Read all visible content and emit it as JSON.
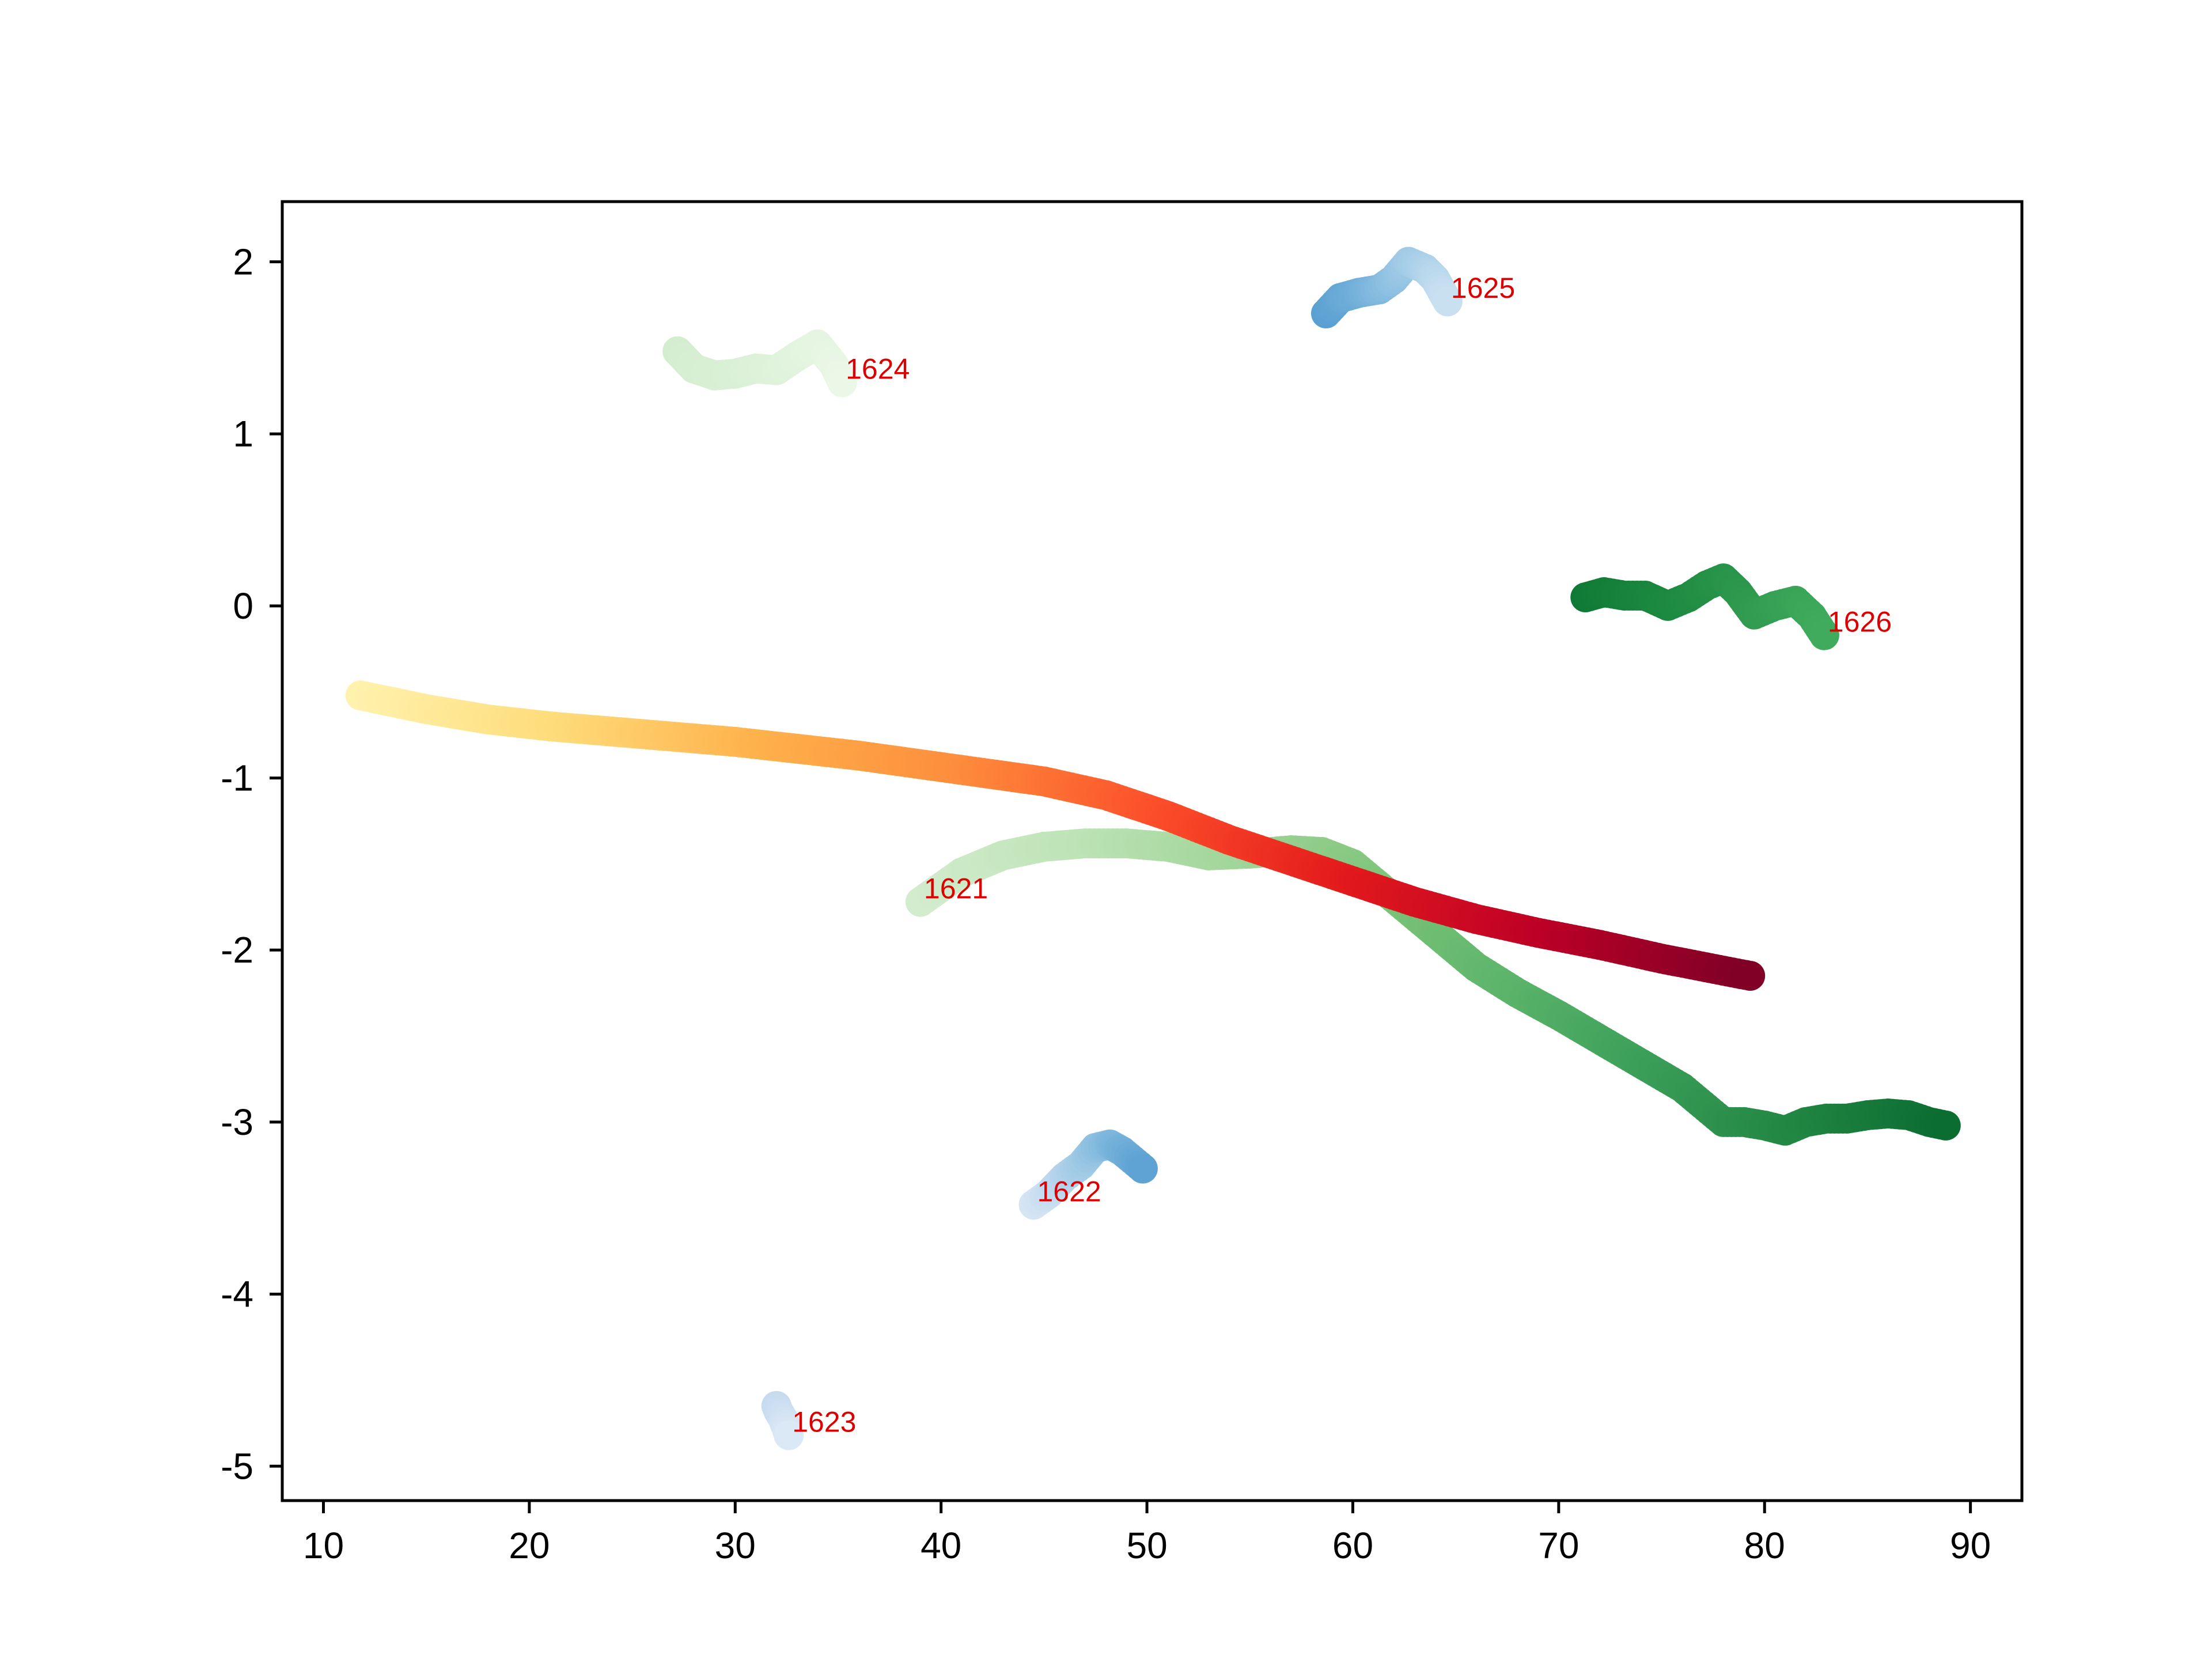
{
  "chart_data": {
    "type": "scatter",
    "title": "",
    "xlabel": "",
    "ylabel": "",
    "xlim": [
      8,
      92.5
    ],
    "ylim": [
      -5.2,
      2.35
    ],
    "xticks": [
      10,
      20,
      30,
      40,
      50,
      60,
      70,
      80,
      90
    ],
    "xtick_labels": [
      "10",
      "20",
      "30",
      "40",
      "50",
      "60",
      "70",
      "80",
      "90"
    ],
    "yticks": [
      2,
      1,
      0,
      -1,
      -2,
      -3,
      -4,
      -5
    ],
    "ytick_labels": [
      "2",
      "1",
      "0",
      "-1",
      "-2",
      "-3",
      "-4",
      "-5"
    ],
    "grid": false,
    "legend": "none",
    "annotation_color": "#dd0000",
    "series": [
      {
        "id": "track-1621",
        "label": "1621",
        "label_at": [
          39.0,
          -1.72
        ],
        "colors": [
          "#d3ecce",
          "#bfe4b8",
          "#a3d69b",
          "#7ec47a",
          "#5bb46a",
          "#3a9e58",
          "#238744",
          "#0c6d31"
        ],
        "x": [
          39,
          41,
          43,
          45,
          47,
          49,
          51,
          53,
          55,
          57,
          58.5,
          60,
          61.5,
          63,
          64.5,
          66,
          68,
          70,
          72,
          74,
          76,
          77,
          78,
          79,
          80,
          81,
          82,
          83,
          84,
          85,
          86,
          87,
          88,
          88.8
        ],
        "y": [
          -1.72,
          -1.55,
          -1.45,
          -1.4,
          -1.38,
          -1.38,
          -1.4,
          -1.45,
          -1.44,
          -1.42,
          -1.43,
          -1.5,
          -1.65,
          -1.8,
          -1.95,
          -2.1,
          -2.25,
          -2.38,
          -2.52,
          -2.66,
          -2.8,
          -2.9,
          -3.0,
          -3.0,
          -3.02,
          -3.05,
          -3.0,
          -2.98,
          -2.98,
          -2.96,
          -2.95,
          -2.96,
          -3.0,
          -3.02
        ]
      },
      {
        "id": "track-1622",
        "label": "1622",
        "label_at": [
          44.5,
          -3.48
        ],
        "colors": [
          "#d6e5f4",
          "#bdd7ee",
          "#9dc8e4",
          "#7ab5db",
          "#5fa3d4"
        ],
        "x": [
          44.5,
          45.2,
          46.0,
          46.8,
          47.5,
          48.2,
          48.8,
          49.3,
          49.8
        ],
        "y": [
          -3.48,
          -3.42,
          -3.32,
          -3.25,
          -3.15,
          -3.13,
          -3.17,
          -3.22,
          -3.27
        ]
      },
      {
        "id": "track-1623",
        "label": "1623",
        "label_at": [
          32.6,
          -4.82
        ],
        "colors": [
          "#c6dbef",
          "#cfe0f2",
          "#dbe8f5"
        ],
        "x": [
          32.0,
          32.1,
          32.3,
          32.5,
          32.6
        ],
        "y": [
          -4.65,
          -4.68,
          -4.72,
          -4.78,
          -4.82
        ]
      },
      {
        "id": "track-1624",
        "label": "1624",
        "label_at": [
          35.2,
          1.3
        ],
        "colors": [
          "#d4edd0",
          "#daf0d6",
          "#e2f4de",
          "#ebf7e7"
        ],
        "x": [
          27.2,
          28,
          29,
          30,
          31,
          32,
          33,
          34,
          34.8,
          35.2
        ],
        "y": [
          1.48,
          1.38,
          1.34,
          1.35,
          1.38,
          1.37,
          1.45,
          1.52,
          1.4,
          1.3
        ]
      },
      {
        "id": "track-1625",
        "label": "1625",
        "label_at": [
          64.6,
          1.77
        ],
        "colors": [
          "#5aa0d2",
          "#6eadd8",
          "#8fc1e2",
          "#afd2ea",
          "#c9e0f1"
        ],
        "x": [
          58.7,
          59.4,
          60.3,
          61.3,
          62.0,
          62.7,
          63.5,
          64.0,
          64.6
        ],
        "y": [
          1.7,
          1.79,
          1.82,
          1.84,
          1.9,
          2.0,
          1.96,
          1.9,
          1.77
        ]
      },
      {
        "id": "track-1626",
        "label": "1626",
        "label_at": [
          82.9,
          -0.17
        ],
        "colors": [
          "#0f7a36",
          "#1d8a41",
          "#2f9a4e",
          "#41ab5d"
        ],
        "x": [
          71.3,
          72.2,
          73.2,
          74.2,
          75.3,
          76.3,
          77.2,
          78.0,
          78.7,
          79.5,
          80.5,
          81.5,
          82.3,
          82.9
        ],
        "y": [
          0.05,
          0.08,
          0.06,
          0.06,
          0.0,
          0.05,
          0.12,
          0.16,
          0.08,
          -0.05,
          0.0,
          0.03,
          -0.06,
          -0.17
        ]
      },
      {
        "id": "track-main",
        "label": "",
        "colors": [
          "#fff2ae",
          "#fedc7a",
          "#feb24c",
          "#fd8d3c",
          "#fc4e2a",
          "#e31a1c",
          "#bd0026",
          "#800026"
        ],
        "x": [
          11.8,
          15,
          18,
          21,
          24,
          27,
          30,
          33,
          36,
          39,
          42,
          45,
          48,
          51,
          54,
          57,
          60,
          63,
          66,
          69,
          72,
          75,
          78,
          79.3
        ],
        "y": [
          -0.52,
          -0.6,
          -0.66,
          -0.7,
          -0.73,
          -0.76,
          -0.79,
          -0.83,
          -0.87,
          -0.92,
          -0.97,
          -1.02,
          -1.1,
          -1.22,
          -1.36,
          -1.48,
          -1.6,
          -1.72,
          -1.82,
          -1.9,
          -1.97,
          -2.05,
          -2.12,
          -2.15
        ]
      }
    ]
  }
}
